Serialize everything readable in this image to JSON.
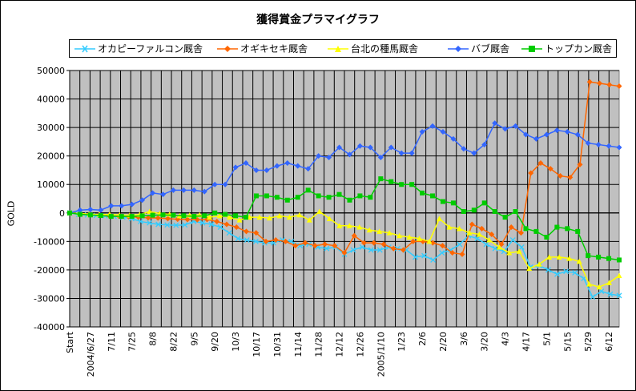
{
  "chart_data": {
    "type": "line",
    "title": "獲得賞金プラマイグラフ",
    "ylabel": "GOLD",
    "ylim": [
      -40000,
      50000
    ],
    "yticks": [
      50000,
      40000,
      30000,
      20000,
      10000,
      0,
      -10000,
      -20000,
      -30000,
      -40000
    ],
    "ytick_labels": [
      "50000",
      "40000",
      "30000",
      "20000",
      "10000",
      "0",
      "-10000",
      "-20000",
      "-30000",
      "-40000"
    ],
    "xtick_labels": [
      "Start",
      "2004/6/27",
      "7/11",
      "7/25",
      "8/8",
      "8/22",
      "9/5",
      "9/20",
      "10/3",
      "10/17",
      "10/31",
      "11/14",
      "11/28",
      "12/12",
      "12/26",
      "2005/1/10",
      "1/23",
      "2/6",
      "2/20",
      "3/6",
      "3/20",
      "4/3",
      "4/17",
      "5/1",
      "5/15",
      "5/29",
      "6/12"
    ],
    "grid": true,
    "legend_position": "top",
    "plot_background": "#c0c0c0",
    "series": [
      {
        "name": "オカピーファルコン厩舎",
        "color": "#33ccff",
        "marker": "x",
        "values": [
          0,
          -500,
          -700,
          -900,
          -1000,
          -1200,
          -1500,
          -2000,
          -3000,
          -3500,
          -4000,
          -4200,
          -4300,
          -4200,
          -3000,
          -3500,
          -4000,
          -5000,
          -7000,
          -9000,
          -9500,
          -10000,
          -10500,
          -10500,
          -9500,
          -10000,
          -11500,
          -11000,
          -12000,
          -12500,
          -12000,
          -14500,
          -13000,
          -12000,
          -13000,
          -13000,
          -12000,
          -12500,
          -13000,
          -15500,
          -15000,
          -16500,
          -14000,
          -13000,
          -11000,
          -8000,
          -9000,
          -11000,
          -12500,
          -13500,
          -9500,
          -12000,
          -19000,
          -18500,
          -20000,
          -21500,
          -20500,
          -21000,
          -23000,
          -29500,
          -27500,
          -28500,
          -29000
        ]
      },
      {
        "name": "オギキセキ厩舎",
        "color": "#ff6600",
        "marker": "diamond",
        "values": [
          0,
          -300,
          -500,
          -700,
          -900,
          -1100,
          -1300,
          -1500,
          -1700,
          -1800,
          -2000,
          -2200,
          -2300,
          -2400,
          -2300,
          -3000,
          -4000,
          -5000,
          -6500,
          -7000,
          -10000,
          -9500,
          -10000,
          -11500,
          -10500,
          -11500,
          -11000,
          -11500,
          -14000,
          -8000,
          -10500,
          -10500,
          -11000,
          -12500,
          -13000,
          -10000,
          -10000,
          -10500,
          -11500,
          -14000,
          -14500,
          -4000,
          -5500,
          -7500,
          -11000,
          -5000,
          -7000,
          14000,
          17500,
          15500,
          13000,
          12500,
          17000,
          46000,
          45500,
          45000,
          44500
        ]
      },
      {
        "name": "台北の種馬厩舎",
        "color": "#ffff00",
        "marker": "triangle",
        "values": [
          0,
          -200,
          -400,
          -600,
          -500,
          -700,
          -800,
          -600,
          500,
          -200,
          -500,
          -1000,
          -800,
          -700,
          -1500,
          -1000,
          -1500,
          -2500,
          -1500,
          -1500,
          -1800,
          -1000,
          -1500,
          -700,
          -2500,
          500,
          -2000,
          -4500,
          -4500,
          -5000,
          -6000,
          -6500,
          -7000,
          -8000,
          -8500,
          -9000,
          -10000,
          -2000,
          -5000,
          -5500,
          -7000,
          -7500,
          -9500,
          -12000,
          -14000,
          -13500,
          -19500,
          -18000,
          -15500,
          -15500,
          -16000,
          -17000,
          -25000,
          -26000,
          -24500,
          -22000
        ]
      },
      {
        "name": "バブ厩舎",
        "color": "#3366ff",
        "marker": "diamond",
        "values": [
          0,
          1000,
          1200,
          1000,
          2500,
          2500,
          3000,
          4500,
          7000,
          6500,
          8000,
          8000,
          8000,
          7500,
          10000,
          10000,
          16000,
          17500,
          15000,
          15000,
          16500,
          17500,
          16500,
          15500,
          20000,
          19500,
          23000,
          20500,
          23500,
          23000,
          19500,
          23000,
          21000,
          21000,
          28500,
          30500,
          28500,
          26000,
          22500,
          21000,
          24000,
          31500,
          29500,
          30500,
          27500,
          26000,
          27500,
          29000,
          28500,
          27500,
          24500,
          24000,
          23500,
          23000
        ]
      },
      {
        "name": "トップカン厩舎",
        "color": "#00cc00",
        "marker": "square",
        "values": [
          0,
          -500,
          -700,
          -900,
          -1200,
          -1200,
          -1200,
          -1000,
          -800,
          -700,
          -800,
          -1000,
          -1200,
          -1000,
          0,
          -500,
          -1000,
          -1500,
          6000,
          6000,
          5500,
          4500,
          5500,
          8000,
          6000,
          5500,
          6500,
          4500,
          6000,
          5500,
          12000,
          11000,
          10000,
          10000,
          7000,
          6000,
          4000,
          3500,
          500,
          1000,
          3500,
          500,
          -1500,
          500,
          -5500,
          -6500,
          -8500,
          -5000,
          -5500,
          -6500,
          -15000,
          -15500,
          -16000,
          -16500
        ]
      }
    ]
  }
}
